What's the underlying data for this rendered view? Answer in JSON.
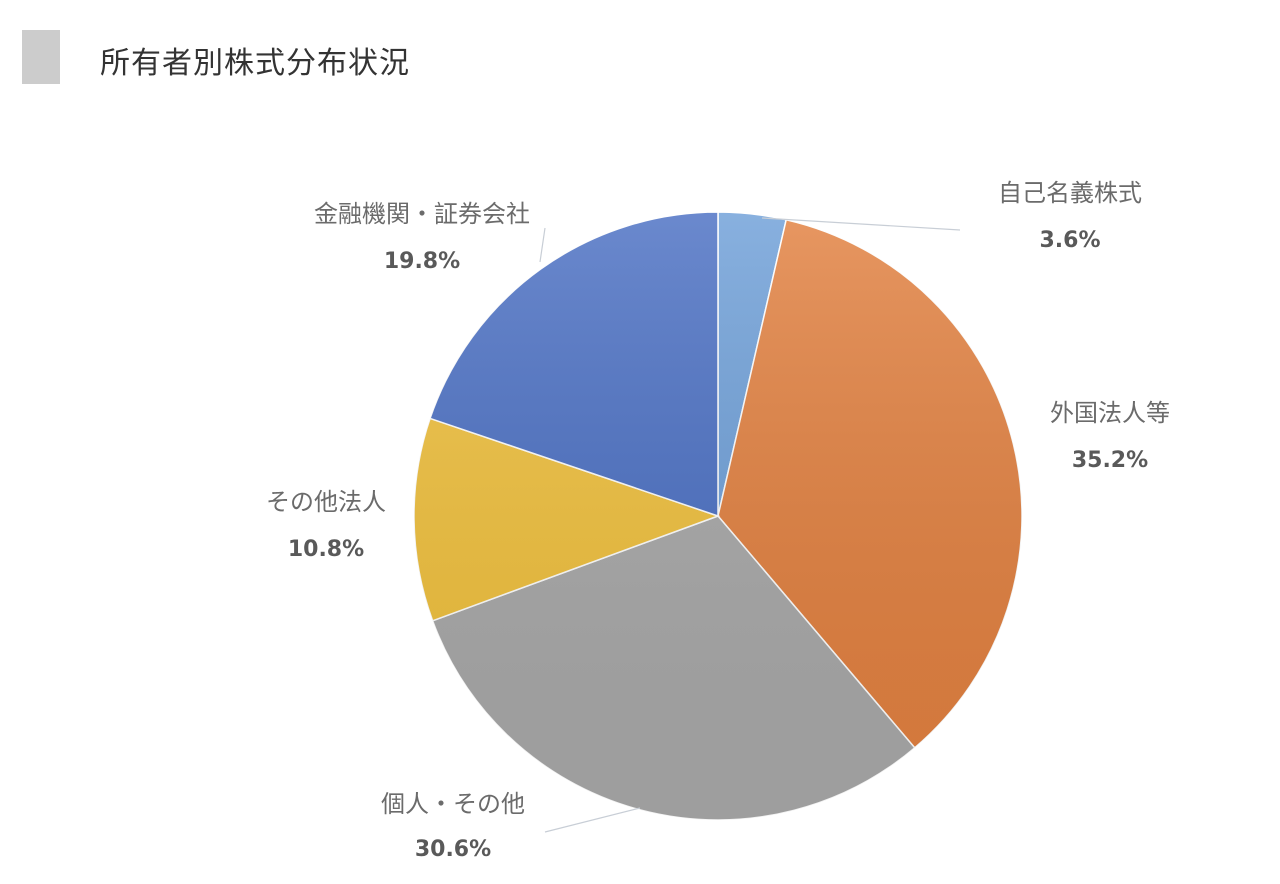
{
  "header": {
    "title": "所有者別株式分布状況"
  },
  "chart_data": {
    "type": "pie",
    "categories": [
      "自己名義株式",
      "外国法人等",
      "個人・その他",
      "その他法人",
      "金融機関・証券会社"
    ],
    "values": [
      3.6,
      35.2,
      30.6,
      10.8,
      19.8
    ],
    "value_labels": [
      "3.6%",
      "35.2%",
      "30.6%",
      "10.8%",
      "19.8%"
    ],
    "colors": [
      "#6e9fd8",
      "#e2803f",
      "#a8a8a8",
      "#f0c03c",
      "#4a6fc3"
    ],
    "start_angle_deg": 0,
    "direction": "clockwise",
    "legend": "none"
  }
}
